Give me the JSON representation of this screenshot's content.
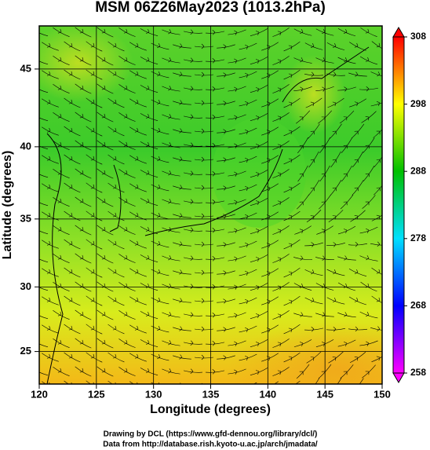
{
  "chart_data": {
    "type": "map",
    "title": "MSM 06Z26May2023 (1013.2hPa)",
    "x_label": "Longitude (degrees)",
    "y_label": "Latitude  (degrees)",
    "xlim": [
      120,
      150
    ],
    "xticks": [
      120,
      125,
      130,
      135,
      140,
      145,
      150
    ],
    "ylim": [
      22.4,
      47.6
    ],
    "yticks": [
      25,
      30,
      35,
      40,
      45
    ],
    "projection": "mercator",
    "grid": true,
    "colorbar": {
      "lim": [
        258,
        308
      ],
      "ticks": [
        258,
        268,
        278,
        288,
        298,
        308
      ],
      "colormap": [
        "#ff00ff",
        "#0000ff",
        "#00e0ff",
        "#00c000",
        "#ffff00",
        "#ff0000"
      ]
    },
    "footer": [
      "Drawing by DCL (https://www.gfd-dennou.org/library/dcl/)",
      "Data from http://database.rish.kyoto-u.ac.jp/arch/jmadata/"
    ]
  }
}
